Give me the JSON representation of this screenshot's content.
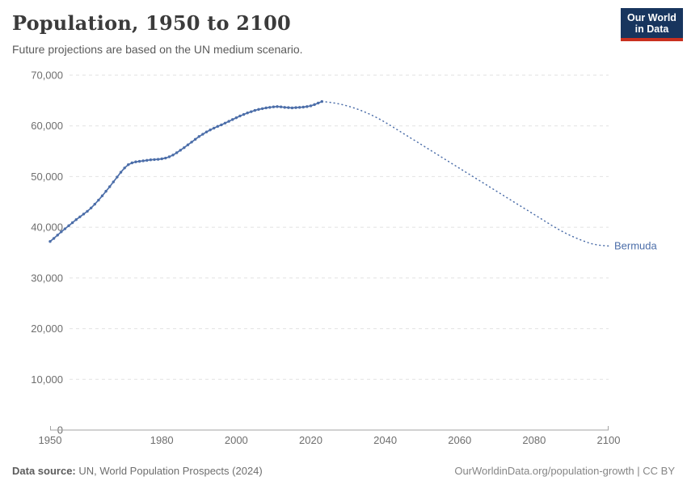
{
  "header": {
    "title": "Population, 1950 to 2100",
    "subtitle": "Future projections are based on the UN medium scenario.",
    "logo": {
      "line1": "Our World",
      "line2": "in Data"
    }
  },
  "footer": {
    "data_source_label": "Data source:",
    "data_source_value": " UN, World Population Prospects (2024)",
    "note": "OurWorldinData.org/population-growth | CC BY"
  },
  "colors": {
    "series": "#4c6ea9",
    "entity_label": "#4c6ea9",
    "grid": "#e2e2e2",
    "axis": "#a3a3a3",
    "tick_text": "#6e6e6e",
    "logo_bg": "#18355e",
    "logo_red": "#c9301f"
  },
  "chart_data": {
    "type": "line",
    "title": "Population, 1950 to 2100",
    "subtitle": "Future projections are based on the UN medium scenario.",
    "entity": "Bermuda",
    "xlabel": "",
    "ylabel": "",
    "xlim": [
      1950,
      2100
    ],
    "ylim": [
      0,
      70000
    ],
    "xticks": [
      1950,
      1980,
      2000,
      2020,
      2040,
      2060,
      2080,
      2100
    ],
    "yticks": [
      0,
      10000,
      20000,
      30000,
      40000,
      50000,
      60000,
      70000
    ],
    "grid": "horizontal-dashed",
    "legend_position": "end-of-line-label",
    "series": [
      {
        "name": "Bermuda (estimates)",
        "style": "solid-with-markers",
        "start_year": 1950,
        "values": [
          37200,
          37800,
          38450,
          39100,
          39700,
          40300,
          40900,
          41500,
          42050,
          42600,
          43150,
          43800,
          44550,
          45350,
          46200,
          47100,
          48000,
          48950,
          49900,
          50850,
          51700,
          52350,
          52700,
          52900,
          53000,
          53100,
          53200,
          53300,
          53350,
          53400,
          53500,
          53650,
          53900,
          54250,
          54700,
          55200,
          55700,
          56250,
          56800,
          57350,
          57900,
          58350,
          58800,
          59200,
          59550,
          59900,
          60200,
          60550,
          60900,
          61250,
          61600,
          61950,
          62250,
          62550,
          62800,
          63050,
          63250,
          63400,
          63550,
          63650,
          63750,
          63800,
          63750,
          63650,
          63600,
          63550,
          63600,
          63650,
          63700,
          63800,
          63950,
          64200,
          64500,
          64800
        ]
      },
      {
        "name": "Bermuda (UN medium projection)",
        "style": "dotted",
        "start_year": 2023,
        "values": [
          64800,
          64740,
          64655,
          64550,
          64420,
          64270,
          64095,
          63900,
          63680,
          63440,
          63175,
          62890,
          62580,
          62250,
          61895,
          61520,
          61120,
          60700,
          60255,
          59810,
          59355,
          58900,
          58445,
          57990,
          57535,
          57080,
          56625,
          56170,
          55715,
          55260,
          54805,
          54350,
          53895,
          53440,
          52985,
          52530,
          52075,
          51620,
          51165,
          50710,
          50255,
          49800,
          49345,
          48890,
          48435,
          47980,
          47525,
          47070,
          46615,
          46160,
          45705,
          45250,
          44795,
          44340,
          43885,
          43430,
          42975,
          42520,
          42065,
          41610,
          41155,
          40700,
          40245,
          39810,
          39400,
          39010,
          38640,
          38290,
          37960,
          37650,
          37360,
          37090,
          36840,
          36660,
          36520,
          36420,
          36350,
          36300
        ]
      }
    ]
  }
}
